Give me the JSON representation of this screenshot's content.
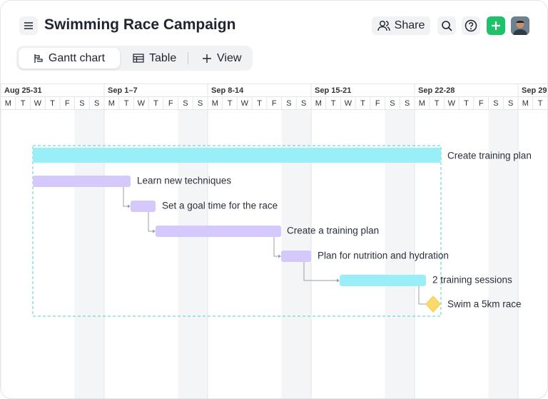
{
  "header": {
    "title": "Swimming Race Campaign",
    "share": "Share"
  },
  "tabs": [
    "Gantt chart",
    "Table",
    "View"
  ],
  "timeline": {
    "weeks": [
      "Aug 25-31",
      "Sep 1–7",
      "Sep 8-14",
      "Sep 15-21",
      "Sep 22-28",
      "Sep 29"
    ],
    "days": [
      "M",
      "T",
      "W",
      "T",
      "F",
      "S",
      "S"
    ]
  },
  "group": {
    "name": "Create training plan"
  },
  "tasks": [
    "Learn new techniques",
    "Set a goal time for the race",
    "Create a training plan",
    "Plan for nutrition and hydration",
    "2 training sessions",
    "Swim a 5km race"
  ]
}
